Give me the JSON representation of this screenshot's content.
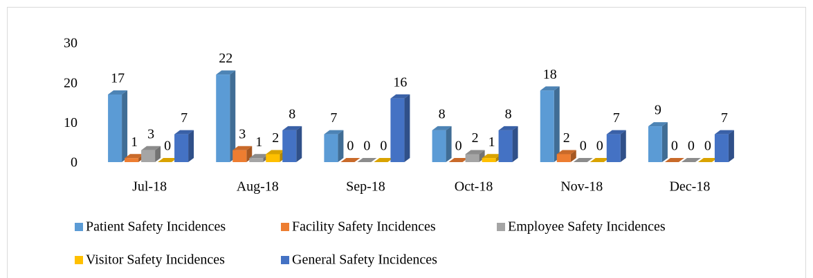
{
  "chart_data": {
    "type": "bar3d",
    "categories": [
      "Jul-18",
      "Aug-18",
      "Sep-18",
      "Oct-18",
      "Nov-18",
      "Dec-18"
    ],
    "series": [
      {
        "name": "Patient Safety Incidences",
        "color": "#5b9bd5",
        "values": [
          17,
          22,
          7,
          8,
          18,
          9
        ]
      },
      {
        "name": "Facility Safety Incidences",
        "color": "#ed7d31",
        "values": [
          1,
          3,
          0,
          0,
          2,
          0
        ]
      },
      {
        "name": "Employee Safety Incidences",
        "color": "#a5a5a5",
        "values": [
          3,
          1,
          0,
          2,
          0,
          0
        ]
      },
      {
        "name": "Visitor Safety Incidences",
        "color": "#ffc000",
        "values": [
          0,
          2,
          0,
          1,
          0,
          0
        ]
      },
      {
        "name": "General Safety Incidences",
        "color": "#4472c4",
        "values": [
          7,
          8,
          16,
          8,
          7,
          7
        ]
      }
    ],
    "ylim": [
      0,
      30
    ],
    "yticks": [
      0,
      10,
      20,
      30
    ],
    "grid": false,
    "legend": "bottom"
  }
}
